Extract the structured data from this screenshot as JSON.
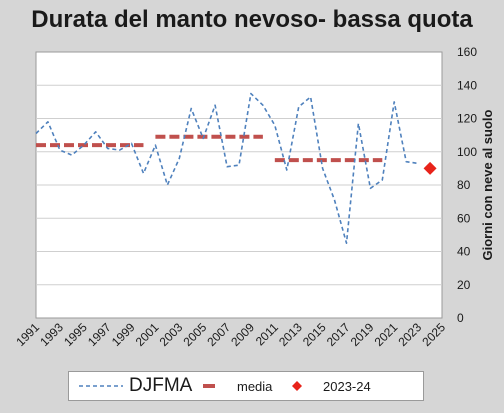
{
  "chart_data": {
    "type": "line",
    "title": "Durata del manto nevoso- bassa quota",
    "ylabel": "Giorni con neve al suolo",
    "ylim": [
      0,
      160
    ],
    "xlim": [
      1991,
      2025
    ],
    "y_ticks": [
      "0",
      "20",
      "40",
      "60",
      "80",
      "100",
      "120",
      "140",
      "160"
    ],
    "x_ticks": [
      "1991",
      "1993",
      "1995",
      "1997",
      "1999",
      "2001",
      "2003",
      "2005",
      "2007",
      "2009",
      "2011",
      "2013",
      "2015",
      "2017",
      "2019",
      "2021",
      "2023",
      "2025"
    ],
    "grid": "horizontal",
    "legend_position": "bottom",
    "series": [
      {
        "name": "DJFMA",
        "style": "dashed-line",
        "color": "#4f81bd",
        "x": [
          1991,
          1992,
          1993,
          1994,
          1995,
          1996,
          1997,
          1998,
          1999,
          2000,
          2001,
          2002,
          2003,
          2004,
          2005,
          2006,
          2007,
          2008,
          2009,
          2010,
          2011,
          2012,
          2013,
          2014,
          2015,
          2016,
          2017,
          2018,
          2019,
          2020,
          2021,
          2022,
          2023
        ],
        "y": [
          111,
          118,
          101,
          98,
          104,
          112,
          102,
          101,
          105,
          87,
          104,
          80,
          96,
          126,
          108,
          128,
          91,
          92,
          135,
          128,
          116,
          89,
          127,
          133,
          90,
          71,
          45,
          117,
          78,
          83,
          130,
          94,
          93
        ]
      },
      {
        "name": "media",
        "style": "thick-dashed-segments",
        "color": "#c0504d",
        "segments": [
          {
            "x_start": 1991,
            "x_end": 2000,
            "value": 104
          },
          {
            "x_start": 2001,
            "x_end": 2010,
            "value": 109
          },
          {
            "x_start": 2011,
            "x_end": 2020,
            "value": 95
          }
        ]
      },
      {
        "name": "2023-24",
        "style": "diamond-marker",
        "color": "#e8231a",
        "x": [
          2024
        ],
        "y": [
          90
        ]
      }
    ]
  }
}
